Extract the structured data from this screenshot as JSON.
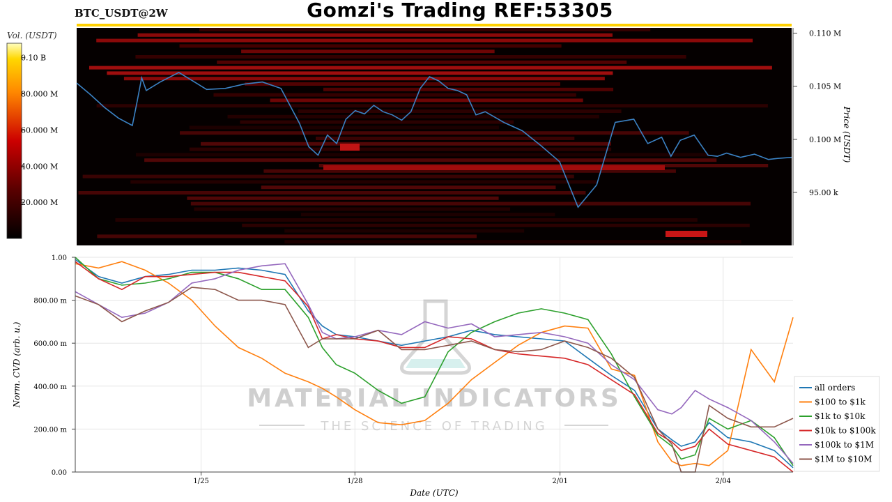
{
  "header": {
    "ticker": "BTC_USDT@2W",
    "title": "Gomzi's Trading REF:53305"
  },
  "watermark": {
    "line1": "MATERIAL INDICATORS",
    "line2": "THE SCIENCE OF TRADING"
  },
  "colors": {
    "heatmap_low": "#050000",
    "heatmap_mid": "#cc0000",
    "heatmap_high": "#ffff80",
    "price_line": "#3b82c4"
  },
  "chart_data": [
    {
      "type": "heatmap",
      "colorbar": {
        "label": "Vol. (USDT)",
        "ticks": [
          "0.10 B",
          "80.000 M",
          "60.000 M",
          "40.000 M",
          "20.000 M"
        ],
        "tick_values": [
          100000000,
          80000000,
          60000000,
          40000000,
          20000000
        ],
        "range": [
          0,
          108000000
        ]
      },
      "price_axis": {
        "label": "Price (USDT)",
        "ticks": [
          "0.110 M",
          "0.105 M",
          "0.100 M",
          "95.00 k"
        ],
        "tick_values": [
          110000,
          105000,
          100000,
          95000
        ],
        "range": [
          90000,
          110500
        ]
      },
      "x_range": [
        0,
        15.4
      ],
      "price_series": {
        "x": [
          0,
          0.3,
          0.6,
          0.9,
          1.2,
          1.3,
          1.4,
          1.5,
          1.8,
          2.2,
          2.5,
          2.8,
          3.2,
          3.6,
          4.0,
          4.4,
          4.8,
          5.0,
          5.2,
          5.4,
          5.6,
          5.8,
          6.0,
          6.2,
          6.4,
          6.6,
          6.8,
          7.0,
          7.2,
          7.4,
          7.6,
          7.8,
          8.0,
          8.2,
          8.4,
          8.6,
          8.8,
          9.0,
          9.2,
          9.6,
          10.0,
          10.4,
          10.8,
          11.2,
          11.6,
          12.0,
          12.3,
          12.6,
          12.8,
          13.0,
          13.3,
          13.6,
          13.8,
          14.0,
          14.3,
          14.6,
          14.9,
          15.1,
          15.4
        ],
        "y": [
          105300,
          104200,
          103000,
          102000,
          101300,
          103500,
          105800,
          104600,
          105400,
          106300,
          105500,
          104700,
          104800,
          105200,
          105400,
          104800,
          101500,
          99300,
          98500,
          100400,
          99600,
          101900,
          102700,
          102400,
          103200,
          102600,
          102300,
          101800,
          102600,
          104800,
          105900,
          105500,
          104800,
          104600,
          104200,
          102300,
          102600,
          102100,
          101600,
          100800,
          99400,
          97900,
          93600,
          95700,
          101600,
          101900,
          99600,
          100200,
          98400,
          99900,
          100400,
          98500,
          98400,
          98700,
          98300,
          98600,
          98100,
          98200,
          98300
        ]
      }
    },
    {
      "type": "line",
      "xlabel": "Date (UTC)",
      "ylabel": "Norm. CVD (arb. u.)",
      "y_ticks": [
        "1.00",
        "800.00 m",
        "600.00 m",
        "400.00 m",
        "200.00 m",
        "0.00"
      ],
      "y_tick_values": [
        1.0,
        0.8,
        0.6,
        0.4,
        0.2,
        0.0
      ],
      "ylim": [
        0,
        1.0
      ],
      "x_ticks": [
        "1/25",
        "1/28",
        "2/01",
        "2/04"
      ],
      "x_tick_values": [
        2.7,
        6.0,
        10.4,
        13.9
      ],
      "x_range": [
        0,
        15.4
      ],
      "grid": true,
      "legend_position": "lower-right",
      "x": [
        0,
        0.5,
        1.0,
        1.5,
        2.0,
        2.5,
        3.0,
        3.5,
        4.0,
        4.5,
        5.0,
        5.3,
        5.6,
        6.0,
        6.5,
        7.0,
        7.5,
        8.0,
        8.5,
        9.0,
        9.5,
        10.0,
        10.5,
        11.0,
        11.5,
        12.0,
        12.5,
        12.8,
        13.0,
        13.3,
        13.6,
        14.0,
        14.5,
        15.0,
        15.4
      ],
      "series": [
        {
          "name": "all orders",
          "color": "#1f77b4",
          "values": [
            0.99,
            0.91,
            0.88,
            0.91,
            0.92,
            0.94,
            0.94,
            0.95,
            0.94,
            0.92,
            0.75,
            0.68,
            0.64,
            0.63,
            0.61,
            0.59,
            0.61,
            0.63,
            0.66,
            0.64,
            0.63,
            0.62,
            0.61,
            0.53,
            0.45,
            0.38,
            0.2,
            0.15,
            0.12,
            0.14,
            0.23,
            0.16,
            0.14,
            0.1,
            0.02
          ]
        },
        {
          "name": "$100 to $1k",
          "color": "#ff7f0e",
          "values": [
            0.97,
            0.95,
            0.98,
            0.94,
            0.88,
            0.8,
            0.68,
            0.58,
            0.53,
            0.46,
            0.42,
            0.39,
            0.35,
            0.29,
            0.23,
            0.22,
            0.24,
            0.32,
            0.43,
            0.51,
            0.59,
            0.65,
            0.68,
            0.67,
            0.48,
            0.45,
            0.14,
            0.05,
            0.03,
            0.04,
            0.03,
            0.1,
            0.57,
            0.42,
            0.72
          ]
        },
        {
          "name": "$1k to $10k",
          "color": "#2ca02c",
          "values": [
            1.0,
            0.9,
            0.87,
            0.88,
            0.9,
            0.93,
            0.93,
            0.9,
            0.85,
            0.85,
            0.72,
            0.58,
            0.5,
            0.46,
            0.38,
            0.32,
            0.35,
            0.56,
            0.65,
            0.7,
            0.74,
            0.76,
            0.74,
            0.71,
            0.55,
            0.35,
            0.17,
            0.12,
            0.06,
            0.08,
            0.25,
            0.2,
            0.24,
            0.16,
            0.03
          ]
        },
        {
          "name": "$10k to $100k",
          "color": "#d62728",
          "values": [
            0.98,
            0.9,
            0.85,
            0.91,
            0.91,
            0.92,
            0.93,
            0.93,
            0.91,
            0.89,
            0.77,
            0.62,
            0.64,
            0.62,
            0.61,
            0.58,
            0.58,
            0.63,
            0.62,
            0.57,
            0.55,
            0.54,
            0.53,
            0.5,
            0.43,
            0.36,
            0.18,
            0.14,
            0.1,
            0.12,
            0.2,
            0.13,
            0.1,
            0.07,
            0.0
          ]
        },
        {
          "name": "$100k to $1M",
          "color": "#9467bd",
          "values": [
            0.84,
            0.78,
            0.72,
            0.74,
            0.79,
            0.88,
            0.9,
            0.94,
            0.96,
            0.97,
            0.78,
            0.65,
            0.62,
            0.63,
            0.66,
            0.64,
            0.7,
            0.67,
            0.69,
            0.63,
            0.64,
            0.65,
            0.63,
            0.6,
            0.5,
            0.43,
            0.29,
            0.27,
            0.3,
            0.38,
            0.34,
            0.3,
            0.24,
            0.14,
            0.04
          ]
        },
        {
          "name": "$1M to $10M",
          "color": "#8c564b",
          "values": [
            0.82,
            0.78,
            0.7,
            0.75,
            0.79,
            0.86,
            0.85,
            0.8,
            0.8,
            0.78,
            0.58,
            0.62,
            0.62,
            0.62,
            0.66,
            0.57,
            0.57,
            0.59,
            0.61,
            0.57,
            0.56,
            0.57,
            0.61,
            0.58,
            0.53,
            0.44,
            0.2,
            0.13,
            0.0,
            0.0,
            0.31,
            0.25,
            0.21,
            0.21,
            0.25
          ]
        }
      ]
    }
  ]
}
